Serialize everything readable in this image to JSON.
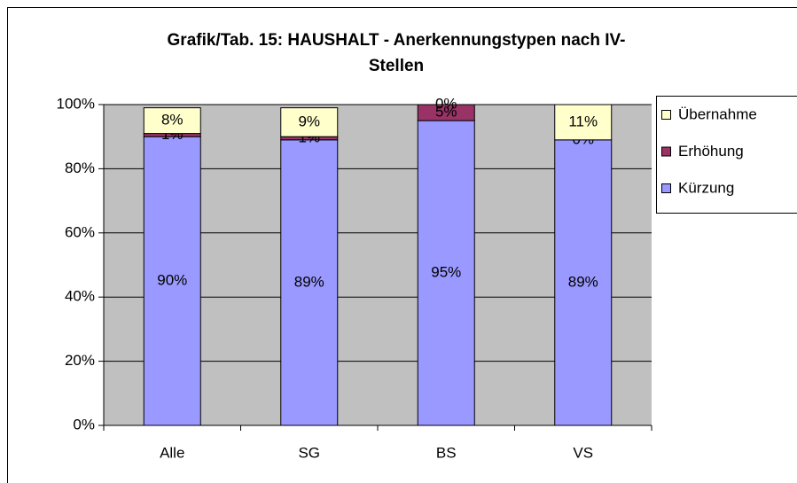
{
  "chart_data": {
    "type": "stacked_bar",
    "title": [
      "Grafik/Tab. 15: HAUSHALT - Anerkennungstypen nach IV-",
      "Stellen"
    ],
    "categories": [
      "Alle",
      "SG",
      "BS",
      "VS"
    ],
    "series": [
      {
        "name": "Kürzung",
        "color": "#9999ff",
        "values": [
          90,
          89,
          95,
          89
        ],
        "value_labels": [
          "90%",
          "89%",
          "95%",
          "89%"
        ]
      },
      {
        "name": "Erhöhung",
        "color": "#993366",
        "values": [
          1,
          1,
          5,
          0
        ],
        "value_labels": [
          "1%",
          "1%",
          "5%",
          "0%"
        ]
      },
      {
        "name": "Übernahme",
        "color": "#ffffcc",
        "values": [
          8,
          9,
          0,
          11
        ],
        "value_labels": [
          "8%",
          "9%",
          "0%",
          "11%"
        ]
      }
    ],
    "ylim": [
      0,
      100
    ],
    "yticks": [
      {
        "value": 0,
        "label": "0%"
      },
      {
        "value": 20,
        "label": "20%"
      },
      {
        "value": 40,
        "label": "40%"
      },
      {
        "value": 60,
        "label": "60%"
      },
      {
        "value": 80,
        "label": "80%"
      },
      {
        "value": 100,
        "label": "100%"
      }
    ],
    "grid": true,
    "legend": "right"
  }
}
